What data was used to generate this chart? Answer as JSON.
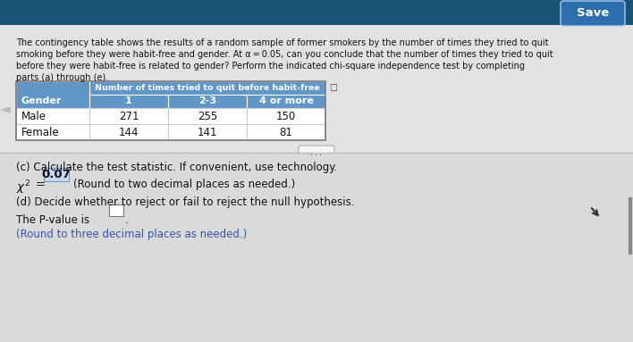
{
  "title_lines": [
    "The contingency table shows the results of a random sample of former smokers by the number of times they tried to quit",
    "smoking before they were habit-free and gender. At α = 0.05, can you conclude that the number of times they tried to quit",
    "before they were habit-free is related to gender? Perform the indicated chi-square independence test by completing",
    "parts (a) through (e)."
  ],
  "table_header_main": "Number of times tried to quit before habit-free",
  "table_col_headers": [
    "Gender",
    "1",
    "2-3",
    "4 or more"
  ],
  "table_rows": [
    [
      "Male",
      "271",
      "255",
      "150"
    ],
    [
      "Female",
      "144",
      "141",
      "81"
    ]
  ],
  "header_bg_color": "#6096C8",
  "header_text_color": "#FFFFFF",
  "save_button_text": "Save",
  "save_button_bg": "#2C6FAC",
  "top_bar_color": "#1F5C96",
  "part_c_text": "(c) Calculate the test statistic. If convenient, use technology.",
  "chi_square_value": "0.07",
  "chi_square_note": "(Round to two decimal places as needed.)",
  "part_d_text": "(d) Decide whether to reject or fail to reject the null hypothesis.",
  "p_value_label": "The P-value is",
  "p_value_note": "(Round to three decimal places as needed.)",
  "main_bg_color": "#D8D8D8",
  "content_bg_color": "#E2E2E2",
  "top_bg_color": "#1A5276",
  "table_bg": "#FFFFFF",
  "ellipsis_text": "..."
}
